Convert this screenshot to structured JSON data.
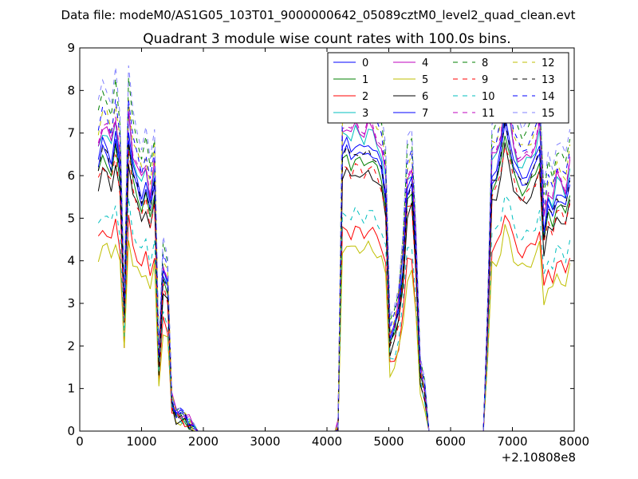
{
  "chart_data": {
    "type": "line",
    "suptitle": "Data file: modeM0/AS1G05_103T01_9000000642_05089cztM0_level2_quad_clean.evt",
    "title": "Quadrant 3 module wise count rates with 100.0s bins.",
    "xlabel": "",
    "ylabel": "",
    "x_offset_label": "+2.10808e8",
    "xlim": [
      0,
      8000
    ],
    "ylim": [
      0,
      9
    ],
    "xticks": [
      0,
      1000,
      2000,
      3000,
      4000,
      5000,
      6000,
      7000,
      8000
    ],
    "xtick_labels": [
      "0",
      "1000",
      "2000",
      "3000",
      "4000",
      "5000",
      "6000",
      "7000",
      "8000"
    ],
    "yticks": [
      0,
      1,
      2,
      3,
      4,
      5,
      6,
      7,
      8,
      9
    ],
    "ytick_labels": [
      "0",
      "1",
      "2",
      "3",
      "4",
      "5",
      "6",
      "7",
      "8",
      "9"
    ],
    "grid": false,
    "legend_position": "top-right",
    "legend_columns": 4,
    "segments": [
      {
        "start": 300,
        "step": 70,
        "count": 27
      },
      {
        "start": 2230,
        "step": 100,
        "count": 20
      },
      {
        "start": 4180,
        "step": 70,
        "count": 25
      },
      {
        "start": 5930,
        "step": 100,
        "count": 6
      },
      {
        "start": 6530,
        "step": 70,
        "count": 21
      }
    ],
    "base_profile": [
      6.2,
      6.6,
      6.5,
      6.2,
      6.8,
      6.0,
      2.8,
      6.9,
      6.0,
      5.7,
      5.4,
      5.7,
      5.1,
      5.8,
      1.6,
      3.6,
      3.3,
      0.7,
      0.4,
      0.35,
      0.3,
      0.2,
      0.1,
      0.05,
      0,
      0,
      0,
      0,
      0,
      0,
      0,
      0,
      0,
      0,
      0,
      0,
      0,
      0,
      0,
      0,
      0,
      0,
      0,
      0,
      0,
      0,
      0,
      0.1,
      6.5,
      6.6,
      6.4,
      6.6,
      6.5,
      6.4,
      6.6,
      6.5,
      6.3,
      6.1,
      5.5,
      2.1,
      2.3,
      2.8,
      3.8,
      5.5,
      5.7,
      4.0,
      1.4,
      0.9,
      0,
      0,
      0,
      0,
      0,
      0,
      0,
      0,
      0,
      0,
      0,
      2.5,
      5.9,
      6.0,
      6.4,
      7.2,
      6.8,
      6.2,
      5.9,
      5.8,
      5.9,
      6.0,
      6.2,
      6.6,
      4.6,
      5.2,
      5.0,
      5.5,
      5.4,
      5.2,
      5.8
    ],
    "series": [
      {
        "name": "0",
        "color": "#0000ff",
        "style": "solid",
        "scale": 1.0,
        "shift": 0.0
      },
      {
        "name": "1",
        "color": "#008000",
        "style": "solid",
        "scale": 0.98,
        "shift": -0.05
      },
      {
        "name": "2",
        "color": "#ff0000",
        "style": "solid",
        "scale": 0.72,
        "shift": 0.0
      },
      {
        "name": "3",
        "color": "#00bfbf",
        "style": "solid",
        "scale": 1.07,
        "shift": 0.0
      },
      {
        "name": "4",
        "color": "#bf00bf",
        "style": "solid",
        "scale": 1.08,
        "shift": 0.05
      },
      {
        "name": "5",
        "color": "#bfbf00",
        "style": "solid",
        "scale": 0.66,
        "shift": 0.0
      },
      {
        "name": "6",
        "color": "#000000",
        "style": "solid",
        "scale": 0.94,
        "shift": -0.1
      },
      {
        "name": "7",
        "color": "#0000ff",
        "style": "solid",
        "scale": 1.02,
        "shift": 0.05
      },
      {
        "name": "8",
        "color": "#008000",
        "style": "dashed",
        "scale": 1.2,
        "shift": 0.0
      },
      {
        "name": "9",
        "color": "#ff0000",
        "style": "dashed",
        "scale": 0.95,
        "shift": -0.05
      },
      {
        "name": "10",
        "color": "#00bfbf",
        "style": "dashed",
        "scale": 0.78,
        "shift": 0.0
      },
      {
        "name": "11",
        "color": "#bf00bf",
        "style": "dashed",
        "scale": 1.1,
        "shift": 0.0
      },
      {
        "name": "12",
        "color": "#bfbf00",
        "style": "dashed",
        "scale": 1.14,
        "shift": 0.0
      },
      {
        "name": "13",
        "color": "#000000",
        "style": "dashed",
        "scale": 1.0,
        "shift": 0.0
      },
      {
        "name": "14",
        "color": "#0000ff",
        "style": "dashed",
        "scale": 1.13,
        "shift": 0.05
      },
      {
        "name": "15",
        "color": "#8080ff",
        "style": "dashed",
        "scale": 1.24,
        "shift": 0.0
      }
    ]
  }
}
